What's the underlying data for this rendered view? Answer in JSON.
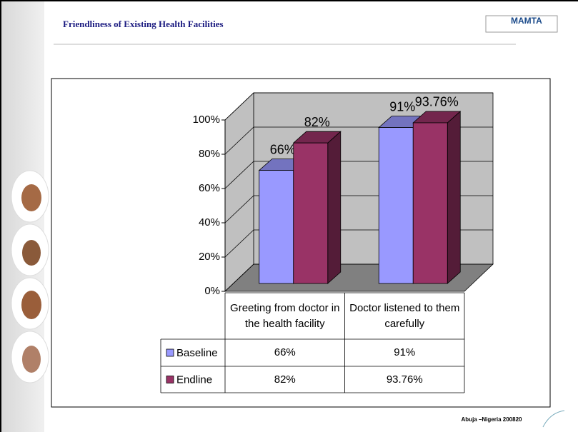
{
  "slide": {
    "title": "Friendliness of Existing Health Facilities",
    "logo": "MAMTA",
    "footer": "Abuja –Nigeria 200820"
  },
  "chart_data": {
    "type": "bar3d",
    "categories": [
      "Greeting from doctor in the health facility",
      "Doctor listened to them carefully"
    ],
    "series": [
      {
        "name": "Baseline",
        "color": "#9999ff",
        "values": [
          66,
          91
        ],
        "value_labels": [
          "66%",
          "91%"
        ]
      },
      {
        "name": "Endline",
        "color": "#993366",
        "values": [
          82,
          93.76
        ],
        "value_labels": [
          "82%",
          "93.76%"
        ]
      }
    ],
    "ylim": [
      0,
      100
    ],
    "yticks": [
      {
        "value": 0,
        "label": "0%"
      },
      {
        "value": 20,
        "label": "20%"
      },
      {
        "value": 40,
        "label": "40%"
      },
      {
        "value": 60,
        "label": "60%"
      },
      {
        "value": 80,
        "label": "80%"
      },
      {
        "value": 100,
        "label": "100%"
      }
    ],
    "grid": true
  }
}
